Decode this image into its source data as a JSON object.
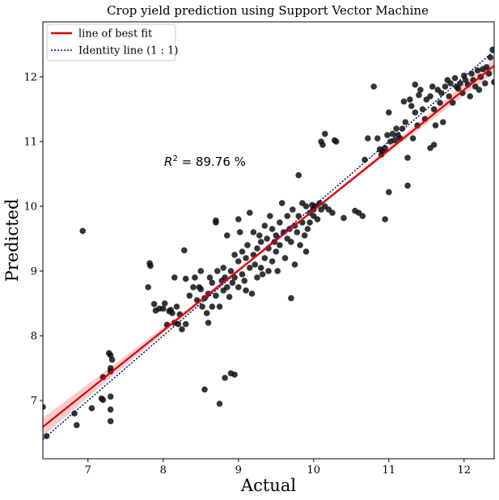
{
  "chart_data": {
    "type": "scatter",
    "title": "Crop yield prediction using Support Vector Machine",
    "xlabel": "Actual",
    "ylabel": "Predicted",
    "xlim": [
      6.4,
      12.4
    ],
    "ylim": [
      6.1,
      12.85
    ],
    "xticks": [
      7,
      8,
      9,
      10,
      11,
      12
    ],
    "yticks": [
      7,
      8,
      9,
      10,
      11,
      12
    ],
    "grid": false,
    "legend_position": "top-left",
    "annotation": {
      "prefix": "R",
      "superscript": "2",
      "text": " = 89.76 %",
      "x": 8.0,
      "y": 10.5
    },
    "colors": {
      "points": "#111111",
      "fit_line": "#e00000",
      "identity_line": "#000080",
      "confidence_band": "#f4b8b8"
    },
    "series": [
      {
        "name": "line of best fit",
        "kind": "regression-line",
        "slope": 0.93,
        "intercept": 0.64
      },
      {
        "name": "Identity line (1 : 1)",
        "kind": "identity-line",
        "slope": 1,
        "intercept": 0
      },
      {
        "kind": "points",
        "points": [
          [
            6.4,
            6.9
          ],
          [
            6.45,
            6.45
          ],
          [
            6.82,
            6.8
          ],
          [
            6.85,
            6.62
          ],
          [
            6.93,
            9.62
          ],
          [
            7.05,
            6.88
          ],
          [
            7.18,
            7.03
          ],
          [
            7.2,
            7.01
          ],
          [
            7.2,
            7.36
          ],
          [
            7.28,
            7.73
          ],
          [
            7.3,
            7.7
          ],
          [
            7.3,
            7.5
          ],
          [
            7.3,
            7.45
          ],
          [
            7.3,
            7.06
          ],
          [
            7.3,
            6.86
          ],
          [
            7.3,
            6.68
          ],
          [
            7.32,
            7.63
          ],
          [
            7.82,
            9.12
          ],
          [
            7.83,
            9.08
          ],
          [
            7.8,
            8.75
          ],
          [
            7.88,
            8.49
          ],
          [
            7.9,
            8.39
          ],
          [
            7.95,
            8.42
          ],
          [
            8.0,
            8.42
          ],
          [
            8.02,
            8.5
          ],
          [
            8.05,
            8.17
          ],
          [
            8.08,
            8.38
          ],
          [
            8.1,
            8.4
          ],
          [
            8.12,
            8.35
          ],
          [
            8.15,
            8.2
          ],
          [
            8.15,
            8.9
          ],
          [
            8.18,
            8.45
          ],
          [
            8.2,
            8.18
          ],
          [
            8.22,
            8.33
          ],
          [
            8.25,
            8.1
          ],
          [
            8.28,
            9.32
          ],
          [
            8.3,
            8.18
          ],
          [
            8.3,
            8.88
          ],
          [
            8.35,
            8.62
          ],
          [
            8.4,
            8.75
          ],
          [
            8.42,
            8.9
          ],
          [
            8.45,
            8.55
          ],
          [
            8.48,
            8.75
          ],
          [
            8.5,
            9.0
          ],
          [
            8.5,
            8.72
          ],
          [
            8.52,
            8.45
          ],
          [
            8.55,
            7.17
          ],
          [
            8.55,
            8.58
          ],
          [
            8.58,
            8.35
          ],
          [
            8.6,
            8.2
          ],
          [
            8.6,
            8.65
          ],
          [
            8.62,
            8.9
          ],
          [
            8.65,
            8.45
          ],
          [
            8.65,
            8.82
          ],
          [
            8.7,
            9.75
          ],
          [
            8.7,
            9.78
          ],
          [
            8.7,
            8.62
          ],
          [
            8.72,
            9.0
          ],
          [
            8.75,
            8.45
          ],
          [
            8.75,
            6.95
          ],
          [
            8.78,
            8.85
          ],
          [
            8.8,
            9.05
          ],
          [
            8.8,
            8.7
          ],
          [
            8.82,
            8.9
          ],
          [
            8.82,
            7.35
          ],
          [
            8.85,
            8.75
          ],
          [
            8.85,
            9.55
          ],
          [
            8.88,
            8.6
          ],
          [
            8.9,
            7.42
          ],
          [
            8.9,
            9.0
          ],
          [
            8.92,
            8.82
          ],
          [
            8.95,
            7.4
          ],
          [
            8.95,
            9.25
          ],
          [
            8.95,
            8.9
          ],
          [
            9.0,
            9.15
          ],
          [
            9.0,
            8.75
          ],
          [
            9.0,
            9.8
          ],
          [
            9.02,
            9.6
          ],
          [
            9.05,
            8.95
          ],
          [
            9.05,
            9.3
          ],
          [
            9.08,
            8.85
          ],
          [
            9.1,
            9.2
          ],
          [
            9.1,
            8.7
          ],
          [
            9.12,
            9.4
          ],
          [
            9.15,
            9.05
          ],
          [
            9.15,
            9.9
          ],
          [
            9.18,
            8.65
          ],
          [
            9.2,
            9.25
          ],
          [
            9.2,
            9.6
          ],
          [
            9.22,
            9.1
          ],
          [
            9.25,
            8.9
          ],
          [
            9.25,
            9.35
          ],
          [
            9.28,
            9.55
          ],
          [
            9.3,
            9.05
          ],
          [
            9.3,
            9.45
          ],
          [
            9.32,
            8.95
          ],
          [
            9.35,
            9.7
          ],
          [
            9.35,
            9.2
          ],
          [
            9.38,
            9.5
          ],
          [
            9.4,
            9.0
          ],
          [
            9.4,
            9.35
          ],
          [
            9.42,
            9.85
          ],
          [
            9.45,
            9.15
          ],
          [
            9.45,
            9.65
          ],
          [
            9.48,
            9.45
          ],
          [
            9.5,
            9.3
          ],
          [
            9.5,
            9.55
          ],
          [
            9.52,
            9.0
          ],
          [
            9.55,
            9.75
          ],
          [
            9.55,
            9.4
          ],
          [
            9.58,
            10.05
          ],
          [
            9.6,
            9.6
          ],
          [
            9.62,
            9.2
          ],
          [
            9.65,
            9.5
          ],
          [
            9.65,
            9.85
          ],
          [
            9.68,
            9.65
          ],
          [
            9.7,
            8.58
          ],
          [
            9.7,
            9.45
          ],
          [
            9.72,
            9.95
          ],
          [
            9.75,
            9.7
          ],
          [
            9.75,
            9.1
          ],
          [
            9.78,
            9.6
          ],
          [
            9.8,
            10.48
          ],
          [
            9.8,
            9.85
          ],
          [
            9.82,
            9.4
          ],
          [
            9.85,
            9.75
          ],
          [
            9.85,
            10.05
          ],
          [
            9.88,
            9.55
          ],
          [
            9.9,
            10.0
          ],
          [
            9.9,
            9.3
          ],
          [
            9.92,
            9.65
          ],
          [
            9.95,
            9.9
          ],
          [
            9.95,
            9.75
          ],
          [
            9.98,
            10.02
          ],
          [
            10.0,
            9.85
          ],
          [
            10.0,
            9.95
          ],
          [
            10.02,
            10.0
          ],
          [
            10.05,
            9.8
          ],
          [
            10.08,
            10.05
          ],
          [
            10.1,
            9.95
          ],
          [
            10.1,
            11.0
          ],
          [
            10.12,
            10.95
          ],
          [
            10.15,
            11.12
          ],
          [
            10.15,
            10.0
          ],
          [
            10.2,
            9.95
          ],
          [
            10.25,
            9.9
          ],
          [
            10.28,
            11.02
          ],
          [
            10.3,
            11.0
          ],
          [
            10.4,
            9.82
          ],
          [
            10.55,
            9.93
          ],
          [
            10.6,
            9.9
          ],
          [
            10.65,
            9.85
          ],
          [
            10.68,
            10.72
          ],
          [
            10.72,
            11.05
          ],
          [
            10.8,
            11.85
          ],
          [
            10.85,
            11.05
          ],
          [
            10.88,
            10.88
          ],
          [
            10.9,
            10.8
          ],
          [
            10.92,
            10.85
          ],
          [
            10.95,
            10.9
          ],
          [
            10.95,
            9.8
          ],
          [
            10.98,
            11.1
          ],
          [
            11.0,
            11.45
          ],
          [
            11.0,
            10.22
          ],
          [
            11.02,
            11.0
          ],
          [
            11.05,
            11.12
          ],
          [
            11.08,
            11.02
          ],
          [
            11.1,
            11.2
          ],
          [
            11.12,
            11.1
          ],
          [
            11.15,
            11.05
          ],
          [
            11.18,
            11.2
          ],
          [
            11.2,
            11.62
          ],
          [
            11.22,
            11.3
          ],
          [
            11.25,
            10.32
          ],
          [
            11.25,
            10.75
          ],
          [
            11.28,
            11.65
          ],
          [
            11.3,
            11.55
          ],
          [
            11.32,
            11.05
          ],
          [
            11.35,
            11.88
          ],
          [
            11.35,
            11.45
          ],
          [
            11.38,
            11.25
          ],
          [
            11.4,
            11.72
          ],
          [
            11.42,
            11.8
          ],
          [
            11.45,
            11.5
          ],
          [
            11.48,
            11.35
          ],
          [
            11.5,
            11.65
          ],
          [
            11.55,
            11.7
          ],
          [
            11.55,
            10.9
          ],
          [
            11.58,
            11.85
          ],
          [
            11.6,
            11.5
          ],
          [
            11.6,
            10.95
          ],
          [
            11.62,
            11.25
          ],
          [
            11.65,
            11.8
          ],
          [
            11.68,
            11.6
          ],
          [
            11.7,
            11.75
          ],
          [
            11.72,
            11.3
          ],
          [
            11.75,
            11.85
          ],
          [
            11.78,
            11.95
          ],
          [
            11.8,
            11.7
          ],
          [
            11.82,
            11.9
          ],
          [
            11.85,
            11.6
          ],
          [
            11.88,
            11.98
          ],
          [
            11.9,
            11.85
          ],
          [
            11.92,
            11.82
          ],
          [
            11.95,
            11.9
          ],
          [
            11.98,
            11.75
          ],
          [
            12.0,
            12.02
          ],
          [
            12.02,
            11.95
          ],
          [
            12.05,
            11.88
          ],
          [
            12.08,
            11.7
          ],
          [
            12.1,
            12.05
          ],
          [
            12.12,
            11.95
          ],
          [
            12.15,
            11.85
          ],
          [
            12.18,
            12.1
          ],
          [
            12.2,
            11.8
          ],
          [
            12.22,
            12.0
          ],
          [
            12.25,
            12.12
          ],
          [
            12.28,
            11.9
          ],
          [
            12.3,
            12.15
          ],
          [
            12.33,
            12.05
          ],
          [
            12.35,
            12.3
          ],
          [
            12.38,
            12.42
          ],
          [
            12.4,
            11.92
          ]
        ]
      }
    ]
  }
}
